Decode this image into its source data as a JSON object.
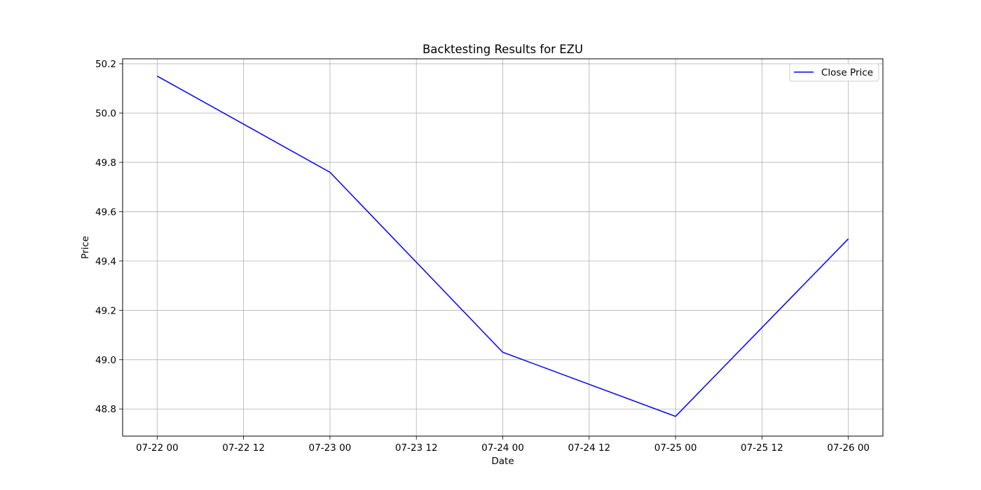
{
  "chart_data": {
    "type": "line",
    "title": "Backtesting Results for EZU",
    "xlabel": "Date",
    "ylabel": "Price",
    "x_ticks": [
      "07-22 00",
      "07-22 12",
      "07-23 00",
      "07-23 12",
      "07-24 00",
      "07-24 12",
      "07-25 00",
      "07-25 12",
      "07-26 00"
    ],
    "y_ticks": [
      "48.8",
      "49.0",
      "49.2",
      "49.4",
      "49.6",
      "49.8",
      "50.0",
      "50.2"
    ],
    "xlim": [
      "07-21 19:12",
      "07-26 04:48"
    ],
    "ylim": [
      48.69,
      50.22
    ],
    "grid": true,
    "legend_position": "top-right",
    "series": [
      {
        "name": "Close Price",
        "color": "#0000ff",
        "x": [
          "07-22 00:00",
          "07-23 00:00",
          "07-24 00:00",
          "07-25 00:00",
          "07-26 00:00"
        ],
        "values": [
          50.15,
          49.76,
          49.03,
          48.77,
          49.49
        ]
      }
    ]
  }
}
